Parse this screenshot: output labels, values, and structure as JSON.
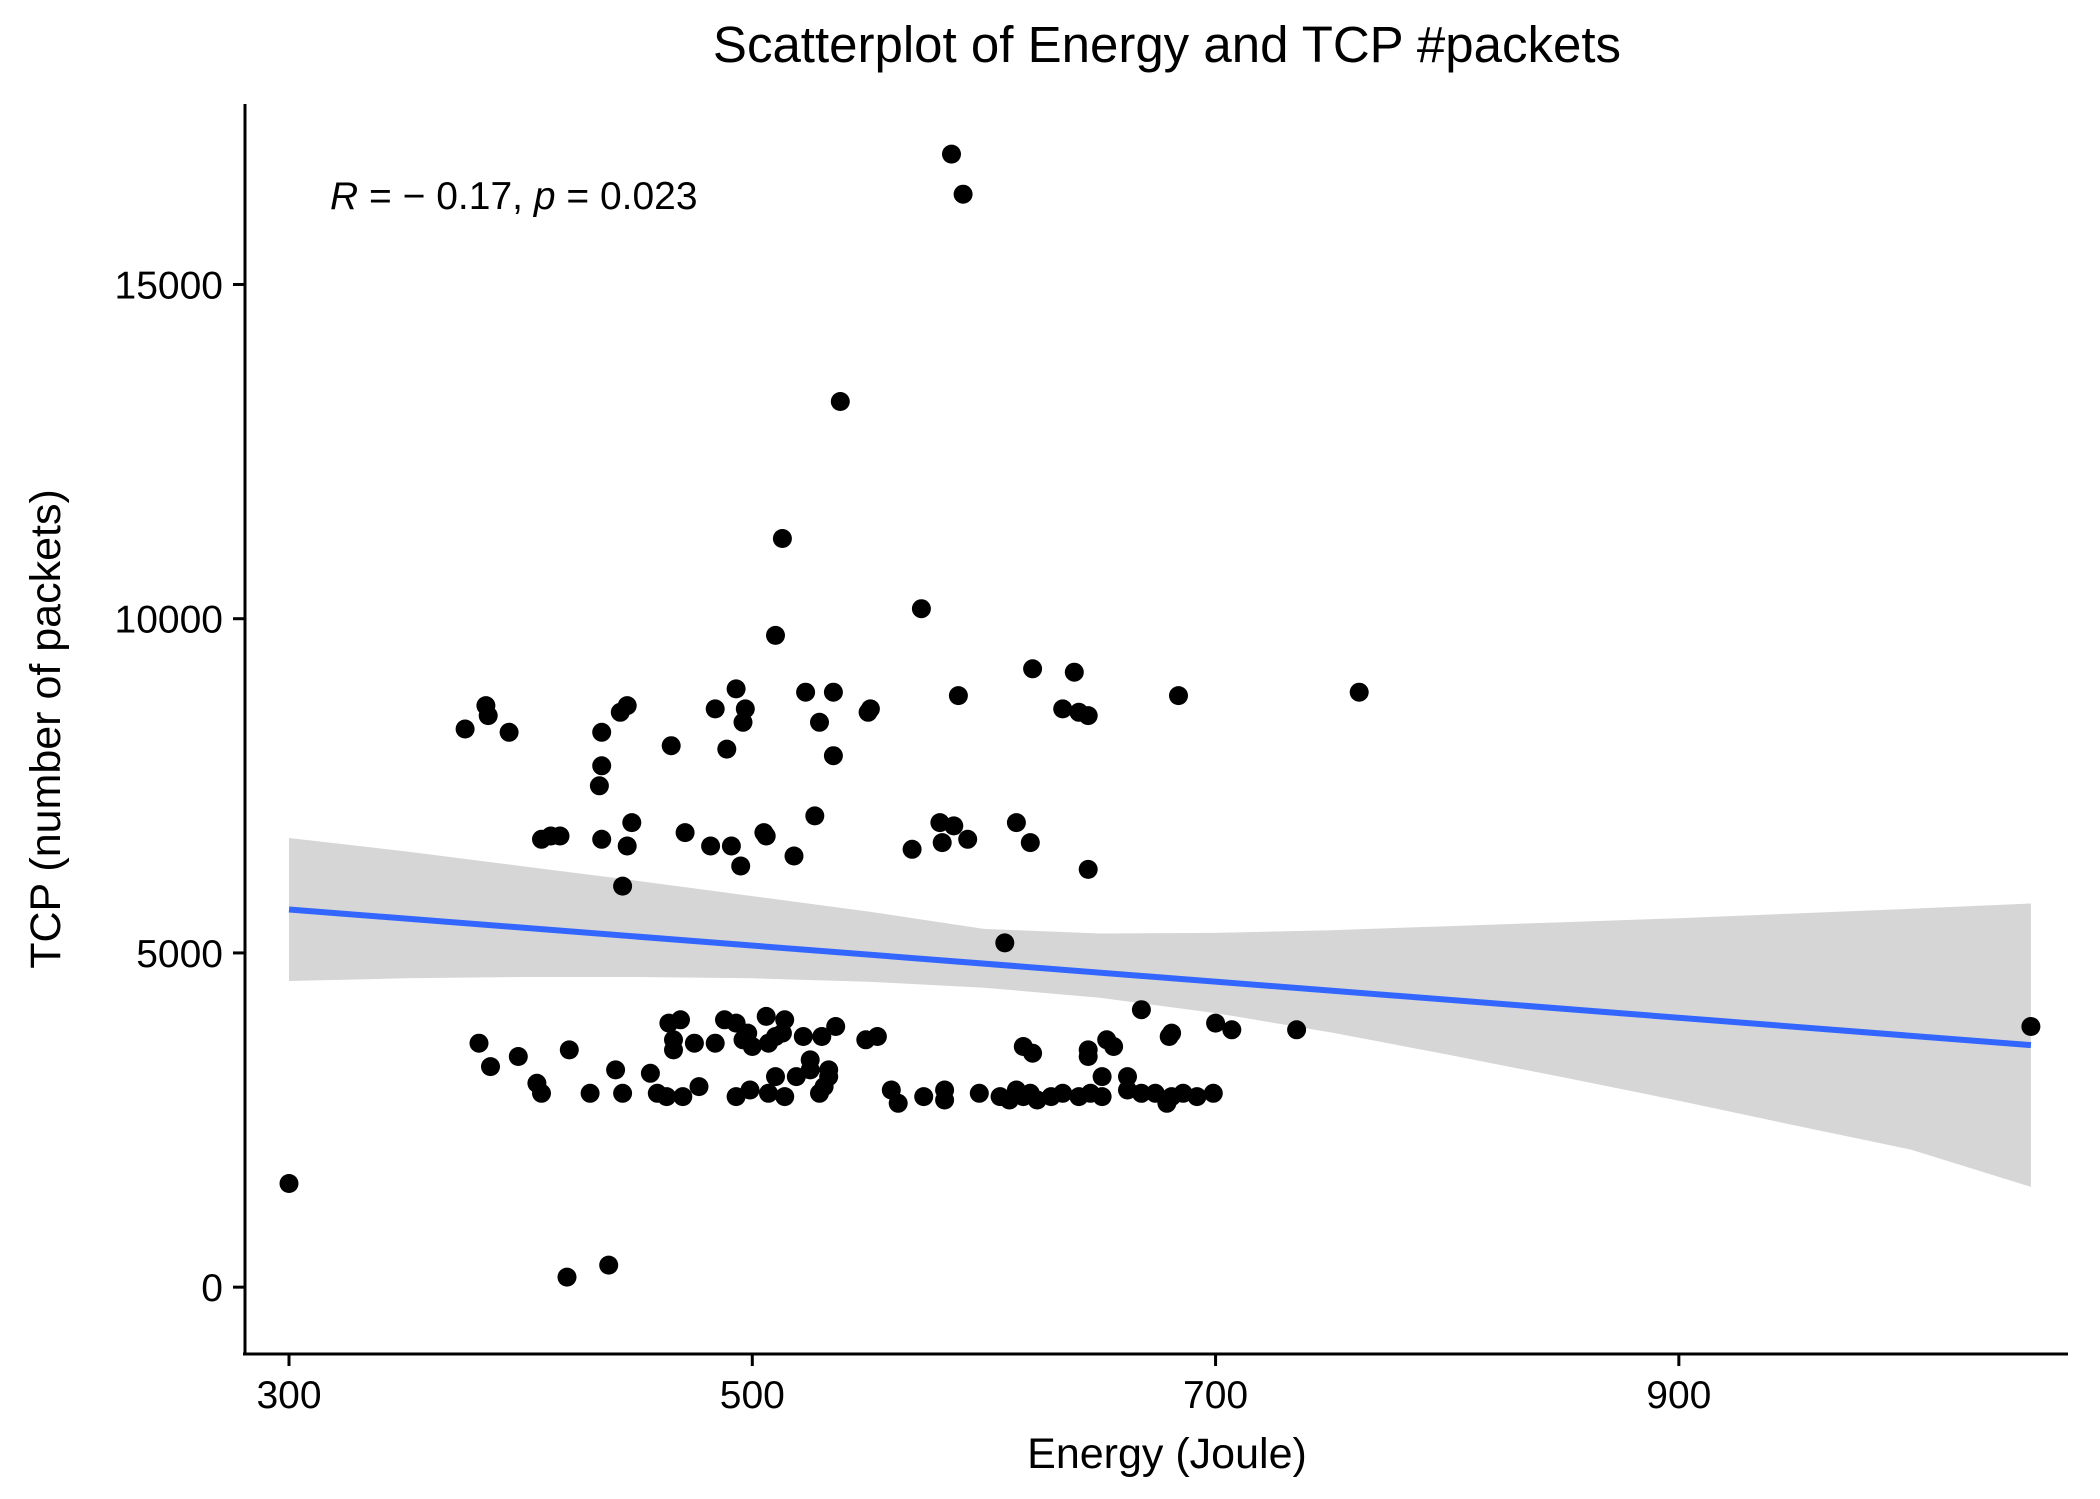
{
  "chart_data": {
    "type": "scatter",
    "title": "Scatterplot of Energy and TCP #packets",
    "xlabel": "Energy (Joule)",
    "ylabel": "TCP (number of packets)",
    "xlim": [
      281,
      1068
    ],
    "ylim": [
      -1000,
      17700
    ],
    "x_ticks": [
      300,
      500,
      700,
      900
    ],
    "y_ticks": [
      0,
      5000,
      10000,
      15000
    ],
    "grid": false,
    "annotation": {
      "r_symbol": "R",
      "r_text": " = − 0.17, ",
      "p_symbol": "p",
      "p_text": " = 0.023"
    },
    "point_color": "#000000",
    "fit_color": "#3366FF",
    "band_color": "#D6D6D6",
    "fit_line": {
      "x": [
        300,
        1052
      ],
      "y": [
        5650,
        3620
      ]
    },
    "confidence_band": {
      "x": [
        300,
        350,
        400,
        450,
        500,
        550,
        600,
        650,
        700,
        750,
        800,
        850,
        900,
        950,
        1000,
        1052
      ],
      "lower": [
        4580,
        4620,
        4640,
        4640,
        4620,
        4570,
        4480,
        4330,
        4100,
        3810,
        3480,
        3140,
        2790,
        2420,
        2060,
        1500
      ],
      "upper": [
        6720,
        6520,
        6300,
        6080,
        5850,
        5620,
        5360,
        5290,
        5300,
        5340,
        5400,
        5460,
        5520,
        5590,
        5660,
        5740
      ]
    },
    "points": [
      [
        300,
        1550
      ],
      [
        420,
        150
      ],
      [
        438,
        330
      ],
      [
        586,
        16950
      ],
      [
        591,
        16350
      ],
      [
        538,
        13250
      ],
      [
        513,
        11200
      ],
      [
        573,
        10150
      ],
      [
        510,
        9750
      ],
      [
        621,
        9250
      ],
      [
        639,
        9200
      ],
      [
        762,
        8900
      ],
      [
        684,
        8850
      ],
      [
        589,
        8850
      ],
      [
        535,
        8900
      ],
      [
        523,
        8900
      ],
      [
        493,
        8950
      ],
      [
        385,
        8700
      ],
      [
        386,
        8550
      ],
      [
        376,
        8350
      ],
      [
        395,
        8300
      ],
      [
        446,
        8700
      ],
      [
        443,
        8600
      ],
      [
        435,
        8300
      ],
      [
        484,
        8650
      ],
      [
        497,
        8650
      ],
      [
        496,
        8450
      ],
      [
        529,
        8450
      ],
      [
        551,
        8650
      ],
      [
        550,
        8600
      ],
      [
        634,
        8650
      ],
      [
        641,
        8600
      ],
      [
        645,
        8550
      ],
      [
        465,
        8100
      ],
      [
        489,
        8050
      ],
      [
        535,
        7950
      ],
      [
        435,
        7800
      ],
      [
        434,
        7500
      ],
      [
        527,
        7050
      ],
      [
        448,
        6950
      ],
      [
        581,
        6950
      ],
      [
        587,
        6900
      ],
      [
        614,
        6950
      ],
      [
        471,
        6800
      ],
      [
        505,
        6800
      ],
      [
        506,
        6750
      ],
      [
        435,
        6700
      ],
      [
        409,
        6700
      ],
      [
        413,
        6750
      ],
      [
        417,
        6750
      ],
      [
        446,
        6600
      ],
      [
        482,
        6600
      ],
      [
        491,
        6600
      ],
      [
        582,
        6650
      ],
      [
        593,
        6700
      ],
      [
        620,
        6650
      ],
      [
        569,
        6550
      ],
      [
        518,
        6450
      ],
      [
        495,
        6300
      ],
      [
        645,
        6250
      ],
      [
        444,
        6000
      ],
      [
        609,
        5150
      ],
      [
        668,
        4150
      ],
      [
        700,
        3950
      ],
      [
        707,
        3850
      ],
      [
        735,
        3850
      ],
      [
        1052,
        3900
      ],
      [
        681,
        3800
      ],
      [
        680,
        3750
      ],
      [
        653,
        3700
      ],
      [
        656,
        3600
      ],
      [
        645,
        3550
      ],
      [
        645,
        3450
      ],
      [
        617,
        3600
      ],
      [
        621,
        3500
      ],
      [
        651,
        3150
      ],
      [
        662,
        3150
      ],
      [
        464,
        3950
      ],
      [
        469,
        4000
      ],
      [
        488,
        4000
      ],
      [
        493,
        3950
      ],
      [
        506,
        4050
      ],
      [
        514,
        4000
      ],
      [
        498,
        3800
      ],
      [
        510,
        3750
      ],
      [
        513,
        3800
      ],
      [
        522,
        3750
      ],
      [
        530,
        3750
      ],
      [
        536,
        3900
      ],
      [
        549,
        3700
      ],
      [
        554,
        3750
      ],
      [
        475,
        3650
      ],
      [
        484,
        3650
      ],
      [
        496,
        3700
      ],
      [
        500,
        3600
      ],
      [
        507,
        3650
      ],
      [
        466,
        3700
      ],
      [
        466,
        3550
      ],
      [
        382,
        3650
      ],
      [
        421,
        3550
      ],
      [
        399,
        3450
      ],
      [
        387,
        3300
      ],
      [
        441,
        3250
      ],
      [
        456,
        3200
      ],
      [
        407,
        3050
      ],
      [
        409,
        2900
      ],
      [
        430,
        2900
      ],
      [
        444,
        2900
      ],
      [
        459,
        2900
      ],
      [
        463,
        2850
      ],
      [
        470,
        2850
      ],
      [
        477,
        3000
      ],
      [
        493,
        2850
      ],
      [
        499,
        2950
      ],
      [
        507,
        2900
      ],
      [
        514,
        2850
      ],
      [
        510,
        3150
      ],
      [
        519,
        3150
      ],
      [
        525,
        3250
      ],
      [
        533,
        3150
      ],
      [
        529,
        2900
      ],
      [
        531,
        3000
      ],
      [
        525,
        3400
      ],
      [
        533,
        3250
      ],
      [
        560,
        2950
      ],
      [
        563,
        2750
      ],
      [
        574,
        2850
      ],
      [
        583,
        2950
      ],
      [
        583,
        2800
      ],
      [
        598,
        2900
      ],
      [
        607,
        2850
      ],
      [
        611,
        2800
      ],
      [
        614,
        2950
      ],
      [
        617,
        2850
      ],
      [
        620,
        2900
      ],
      [
        623,
        2800
      ],
      [
        629,
        2850
      ],
      [
        634,
        2900
      ],
      [
        641,
        2850
      ],
      [
        646,
        2900
      ],
      [
        651,
        2850
      ],
      [
        662,
        2950
      ],
      [
        668,
        2900
      ],
      [
        674,
        2900
      ],
      [
        681,
        2850
      ],
      [
        686,
        2900
      ],
      [
        692,
        2850
      ],
      [
        699,
        2900
      ],
      [
        679,
        2750
      ]
    ]
  }
}
